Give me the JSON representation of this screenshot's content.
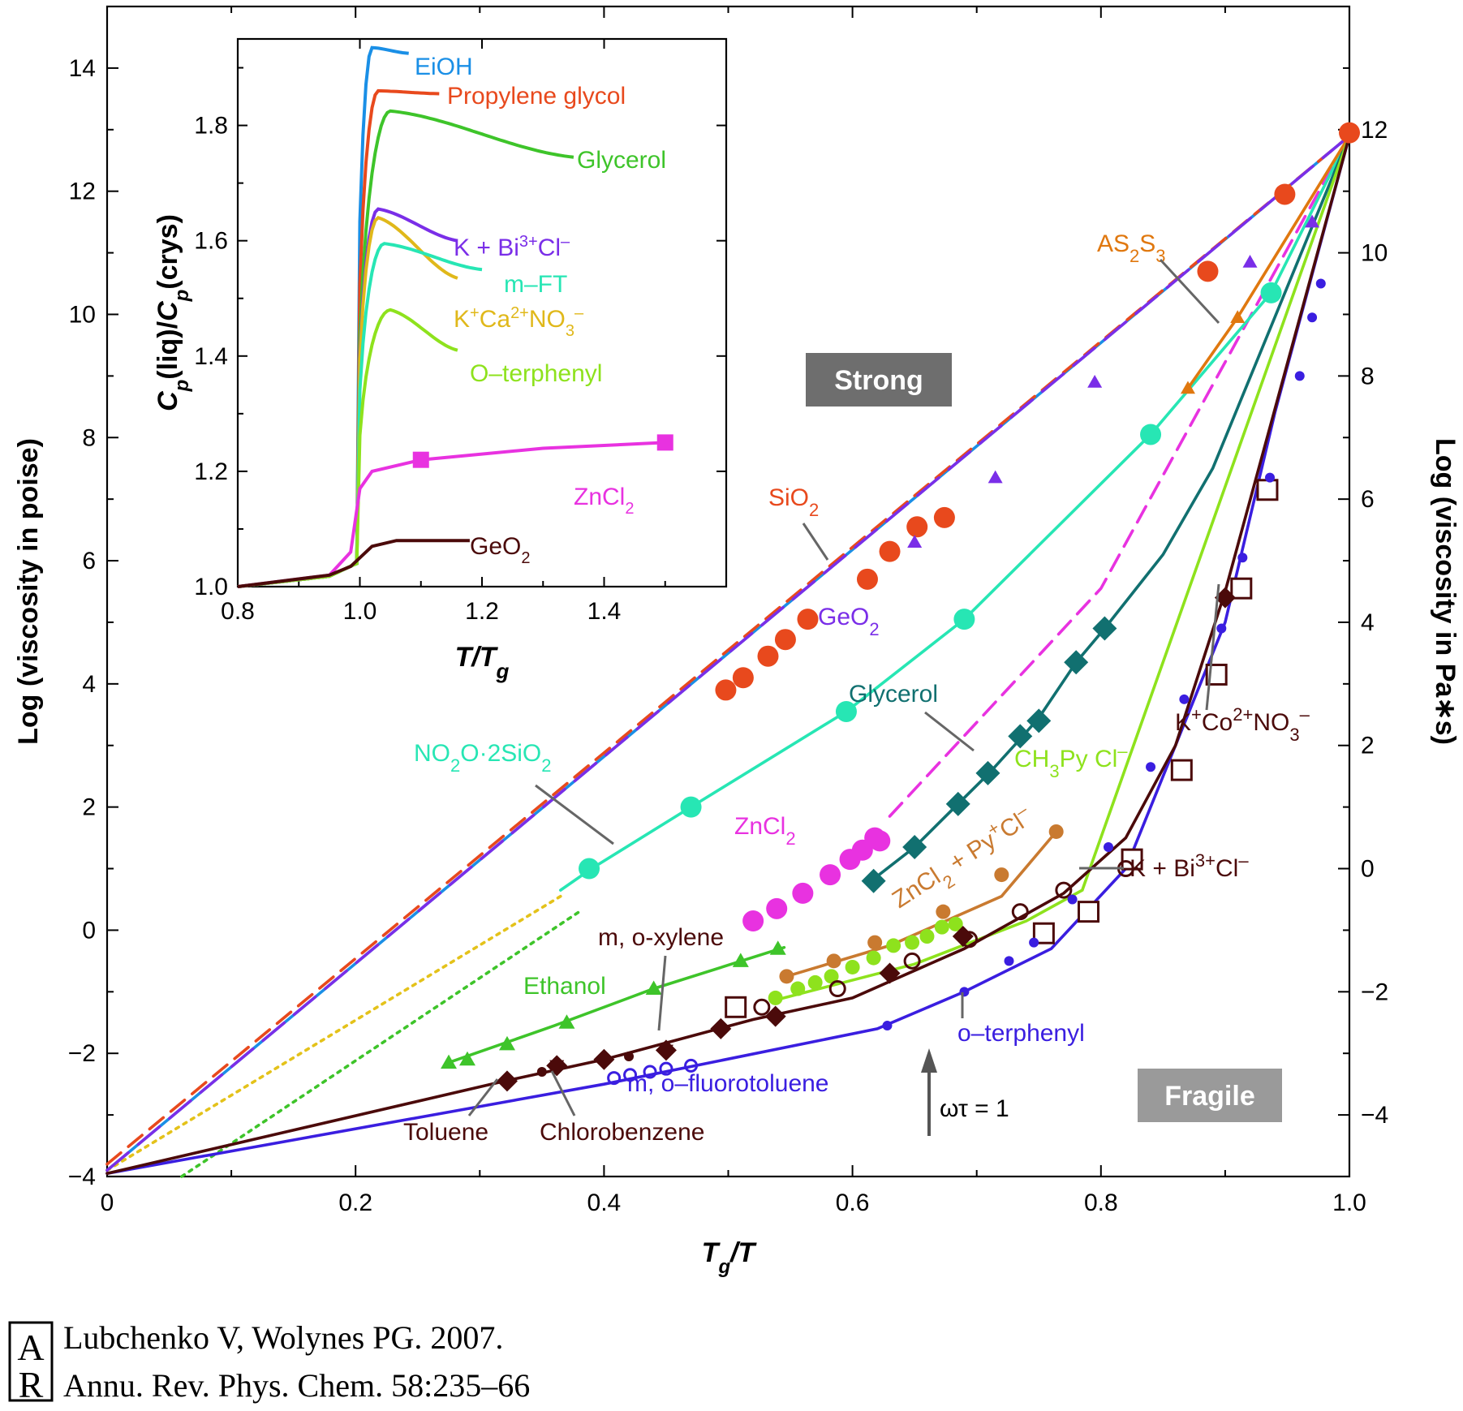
{
  "chart_data": [
    {
      "type": "line",
      "xlabel": "Tg/T",
      "ylabel": "Log (viscosity in poise)",
      "ylabel_right": "Log (viscosity in Pa∗s)",
      "xlim": [
        0,
        1.0
      ],
      "ylim": [
        -4,
        15
      ],
      "ylim_right": [
        -5,
        14
      ],
      "xticks": [
        "0",
        "0.2",
        "0.4",
        "0.6",
        "0.8",
        "1.0"
      ],
      "yticks": [
        "−4",
        "−2",
        "0",
        "2",
        "4",
        "6",
        "8",
        "10",
        "12",
        "14"
      ],
      "yticks_right": [
        "−4",
        "−2",
        "0",
        "2",
        "4",
        "6",
        "8",
        "10",
        "12"
      ],
      "annotations": {
        "strong": "Strong",
        "fragile": "Fragile",
        "omega_tau": "ωτ = 1"
      },
      "series": [
        {
          "name": "SiO₂",
          "label": "SiO₂",
          "color": "#e8491d",
          "style": "dashed",
          "points": [
            [
              0,
              -3.8
            ],
            [
              1.0,
              12.9
            ]
          ],
          "markers": [
            [
              0.498,
              3.9
            ],
            [
              0.512,
              4.1
            ],
            [
              0.532,
              4.45
            ],
            [
              0.546,
              4.72
            ],
            [
              0.564,
              5.05
            ],
            [
              0.612,
              5.7
            ],
            [
              0.63,
              6.15
            ],
            [
              0.652,
              6.55
            ],
            [
              0.674,
              6.7
            ],
            [
              0.886,
              10.7
            ],
            [
              0.948,
              11.95
            ],
            [
              1.0,
              12.95
            ]
          ]
        },
        {
          "name": "GeO₂",
          "label": "GeO₂",
          "color": "#7a2ee8",
          "style": "longdash",
          "points": [
            [
              0,
              -3.9
            ],
            [
              1.0,
              12.9
            ]
          ],
          "markers": [
            [
              0.65,
              6.3
            ],
            [
              0.715,
              7.35
            ],
            [
              0.795,
              8.9
            ],
            [
              0.92,
              10.85
            ],
            [
              0.97,
              11.5
            ]
          ]
        },
        {
          "name": "NO₂O·2SiO₂",
          "label": "NO₂O·2SiO₂",
          "color": "#27e6b4",
          "style": "solid",
          "points": [
            [
              0.365,
              0.65
            ],
            [
              0.39,
              1.0
            ],
            [
              0.47,
              2.0
            ],
            [
              0.595,
              3.55
            ],
            [
              0.69,
              5.05
            ],
            [
              0.84,
              8.05
            ],
            [
              0.937,
              10.35
            ],
            [
              1.0,
              12.9
            ]
          ],
          "markers": [
            [
              0.388,
              1.0
            ],
            [
              0.47,
              2.0
            ],
            [
              0.595,
              3.55
            ],
            [
              0.69,
              5.05
            ],
            [
              0.84,
              8.05
            ],
            [
              0.937,
              10.35
            ]
          ]
        },
        {
          "name": "AS₂S₃",
          "label": "AS₂S₃",
          "color": "#e0780f",
          "style": "solid",
          "points": [
            [
              0.87,
              8.8
            ],
            [
              0.91,
              9.95
            ],
            [
              1.0,
              12.9
            ]
          ],
          "markers": [
            [
              0.87,
              8.8
            ],
            [
              0.91,
              9.95
            ]
          ]
        },
        {
          "name": "Glycerol",
          "label": "Glycerol",
          "color": "#117070",
          "style": "solid",
          "points": [
            [
              0.615,
              0.8
            ],
            [
              0.65,
              1.35
            ],
            [
              0.685,
              2.05
            ],
            [
              0.71,
              2.55
            ],
            [
              0.737,
              3.15
            ],
            [
              0.75,
              3.45
            ],
            [
              0.78,
              4.35
            ],
            [
              0.803,
              4.9
            ],
            [
              0.85,
              6.1
            ],
            [
              0.89,
              7.5
            ],
            [
              1.0,
              12.9
            ]
          ],
          "markers": [
            [
              0.617,
              0.8
            ],
            [
              0.65,
              1.35
            ],
            [
              0.685,
              2.05
            ],
            [
              0.709,
              2.55
            ],
            [
              0.735,
              3.15
            ],
            [
              0.75,
              3.4
            ],
            [
              0.78,
              4.35
            ],
            [
              0.803,
              4.9
            ]
          ]
        },
        {
          "name": "ZnCl₂",
          "label": "ZnCl₂",
          "color": "#e832e0",
          "style": "dashed",
          "points": [
            [
              0.63,
              1.85
            ],
            [
              0.8,
              5.55
            ],
            [
              1.0,
              12.9
            ]
          ],
          "markers": [
            [
              0.52,
              0.15
            ],
            [
              0.539,
              0.35
            ],
            [
              0.56,
              0.6
            ],
            [
              0.582,
              0.9
            ],
            [
              0.598,
              1.15
            ],
            [
              0.608,
              1.3
            ],
            [
              0.618,
              1.5
            ],
            [
              0.622,
              1.45
            ]
          ]
        },
        {
          "name": "CH₃Py Cl⁻",
          "label": "CH₃Py Cl⁻",
          "color": "#8ee21d",
          "style": "solid",
          "points": [
            [
              0.535,
              -1.15
            ],
            [
              0.65,
              -0.55
            ],
            [
              0.74,
              0.15
            ],
            [
              0.785,
              0.65
            ],
            [
              1.0,
              12.9
            ]
          ],
          "markers": [
            [
              0.538,
              -1.1
            ],
            [
              0.556,
              -0.95
            ],
            [
              0.57,
              -0.85
            ],
            [
              0.583,
              -0.75
            ],
            [
              0.6,
              -0.6
            ],
            [
              0.617,
              -0.45
            ],
            [
              0.633,
              -0.25
            ],
            [
              0.648,
              -0.2
            ],
            [
              0.66,
              -0.1
            ],
            [
              0.672,
              0.05
            ],
            [
              0.683,
              0.1
            ]
          ]
        },
        {
          "name": "ZnCl₂ + Py⁺Cl⁻",
          "label": "ZnCl₂ + Py⁺Cl⁻",
          "color": "#c97a30",
          "style": "solid",
          "points": [
            [
              0.547,
              -0.75
            ],
            [
              0.63,
              -0.25
            ],
            [
              0.72,
              0.55
            ],
            [
              0.764,
              1.6
            ]
          ],
          "markers": [
            [
              0.547,
              -0.75
            ],
            [
              0.585,
              -0.5
            ],
            [
              0.618,
              -0.2
            ],
            [
              0.673,
              0.3
            ],
            [
              0.72,
              0.9
            ],
            [
              0.764,
              1.6
            ]
          ]
        },
        {
          "name": "Ethanol",
          "label": "Ethanol",
          "color": "#3ec42a",
          "style": "solid",
          "points": [
            [
              0.275,
              -2.15
            ],
            [
              0.36,
              -1.55
            ],
            [
              0.44,
              -0.95
            ],
            [
              0.545,
              -0.28
            ]
          ],
          "markers": [
            [
              0.275,
              -2.15
            ],
            [
              0.29,
              -2.1
            ],
            [
              0.322,
              -1.85
            ],
            [
              0.37,
              -1.5
            ],
            [
              0.44,
              -0.95
            ],
            [
              0.51,
              -0.5
            ],
            [
              0.54,
              -0.3
            ]
          ]
        },
        {
          "name": "K⁺Co²⁺NO₃⁻",
          "label": "K⁺Co²⁺NO₃⁻",
          "color": "#4b0a0a",
          "style": "solid",
          "points": [
            [
              0,
              -3.95
            ],
            [
              0.32,
              -2.45
            ],
            [
              0.4,
              -2.1
            ],
            [
              0.52,
              -1.45
            ],
            [
              0.6,
              -1.1
            ],
            [
              0.69,
              -0.3
            ],
            [
              0.77,
              0.6
            ],
            [
              0.82,
              1.5
            ],
            [
              0.86,
              3.0
            ],
            [
              0.9,
              5.5
            ],
            [
              1.0,
              12.9
            ]
          ],
          "markers": [
            [
              0.506,
              -1.25
            ],
            [
              0.825,
              1.15
            ],
            [
              0.79,
              0.3
            ],
            [
              0.754,
              -0.05
            ],
            [
              0.865,
              2.6
            ],
            [
              0.893,
              4.15
            ],
            [
              0.913,
              5.55
            ],
            [
              0.934,
              7.15
            ]
          ]
        },
        {
          "name": "K + Bi³⁺Cl⁻",
          "label": "K + Bi³⁺Cl⁻",
          "color": "#4b0a0a",
          "style": "none",
          "markers": [
            [
              0.527,
              -1.25
            ],
            [
              0.588,
              -0.95
            ],
            [
              0.648,
              -0.5
            ],
            [
              0.694,
              -0.15
            ],
            [
              0.735,
              0.3
            ],
            [
              0.77,
              0.65
            ],
            [
              0.82,
              1.0
            ]
          ]
        },
        {
          "name": "m, o-xylene",
          "label": "m, o-xylene",
          "color": "#4b0a0a",
          "style": "none",
          "markers": [
            [
              0.45,
              -1.95
            ],
            [
              0.362,
              -2.2
            ],
            [
              0.322,
              -2.45
            ],
            [
              0.4,
              -2.1
            ],
            [
              0.494,
              -1.6
            ],
            [
              0.538,
              -1.4
            ],
            [
              0.63,
              -0.7
            ],
            [
              0.689,
              -0.1
            ],
            [
              0.9,
              5.4
            ]
          ]
        },
        {
          "name": "o-terphenyl",
          "label": "o–terphenyl",
          "color": "#3a1ee0",
          "style": "solid",
          "points": [
            [
              0,
              -3.95
            ],
            [
              0.4,
              -2.5
            ],
            [
              0.62,
              -1.6
            ],
            [
              0.69,
              -1.0
            ],
            [
              0.76,
              -0.3
            ],
            [
              0.82,
              1.0
            ],
            [
              0.86,
              3.0
            ],
            [
              0.9,
              5.0
            ],
            [
              0.94,
              8.4
            ],
            [
              1.0,
              12.9
            ]
          ],
          "markers": [
            [
              0.628,
              -1.55
            ],
            [
              0.69,
              -1.0
            ],
            [
              0.726,
              -0.5
            ],
            [
              0.746,
              -0.2
            ],
            [
              0.777,
              0.5
            ],
            [
              0.806,
              1.35
            ],
            [
              0.84,
              2.65
            ],
            [
              0.867,
              3.75
            ],
            [
              0.897,
              4.9
            ],
            [
              0.914,
              6.05
            ],
            [
              0.936,
              7.35
            ],
            [
              0.96,
              9.0
            ],
            [
              0.97,
              9.95
            ],
            [
              0.977,
              10.5
            ]
          ]
        },
        {
          "name": "m, o-fluorotoluene",
          "label": "m, o–fluorotoluene",
          "color": "#3a1ee0",
          "style": "none",
          "markers": [
            [
              0.408,
              -2.4
            ],
            [
              0.421,
              -2.35
            ],
            [
              0.437,
              -2.3
            ],
            [
              0.45,
              -2.25
            ],
            [
              0.47,
              -2.2
            ]
          ]
        },
        {
          "name": "Toluene",
          "label": "Toluene",
          "color": "#4b0a0a",
          "style": "none",
          "markers": []
        },
        {
          "name": "Chlorobenzene",
          "label": "Chlorobenzene",
          "color": "#4b0a0a",
          "style": "none",
          "markers": []
        },
        {
          "name": "strong-limit",
          "label": "",
          "color": "#1a8fe6",
          "style": "solid",
          "points": [
            [
              0,
              -3.9
            ],
            [
              1.0,
              12.9
            ]
          ]
        },
        {
          "name": "green-dotted",
          "label": "",
          "color": "#3ec42a",
          "style": "dotted",
          "points": [
            [
              0.06,
              -4.0
            ],
            [
              0.38,
              0.3
            ]
          ]
        },
        {
          "name": "yellow-dotted",
          "label": "",
          "color": "#e4c21a",
          "style": "dotted",
          "points": [
            [
              0,
              -3.9
            ],
            [
              0.365,
              0.55
            ]
          ]
        }
      ]
    },
    {
      "type": "line",
      "xlabel": "T/Tg",
      "ylabel": "Cp(liq)/Cp(crys)",
      "xlim": [
        0.8,
        1.6
      ],
      "ylim": [
        1.0,
        1.95
      ],
      "xticks": [
        "0.8",
        "1.0",
        "1.2",
        "1.4"
      ],
      "yticks": [
        "1.0",
        "1.2",
        "1.4",
        "1.6",
        "1.8"
      ],
      "series": [
        {
          "name": "EiOH",
          "label": "EiOH",
          "color": "#1a8fe6"
        },
        {
          "name": "Propylene glycol",
          "label": "Propylene glycol",
          "color": "#e8491d"
        },
        {
          "name": "Glycerol",
          "label": "Glycerol",
          "color": "#3ec42a"
        },
        {
          "name": "K + Bi³⁺Cl⁻",
          "label": "K + Bi³⁺Cl⁻",
          "color": "#7a2ee8"
        },
        {
          "name": "m–FT",
          "label": "m–FT",
          "color": "#27e6b4"
        },
        {
          "name": "K⁺Ca²⁺NO₃⁻",
          "label": "K⁺Ca²⁺NO₃⁻",
          "color": "#e0b81a"
        },
        {
          "name": "O–terphenyl",
          "label": "O–terphenyl",
          "color": "#8ee21d"
        },
        {
          "name": "ZnCl₂",
          "label": "ZnCl₂",
          "color": "#e832e0"
        },
        {
          "name": "GeO₂",
          "label": "GeO₂",
          "color": "#4b0a0a"
        }
      ]
    }
  ],
  "citation": {
    "line1": "Lubchenko V, Wolynes PG. 2007.",
    "line2": "Annu. Rev. Phys. Chem. 58:235–66"
  },
  "logo_text": "AR"
}
